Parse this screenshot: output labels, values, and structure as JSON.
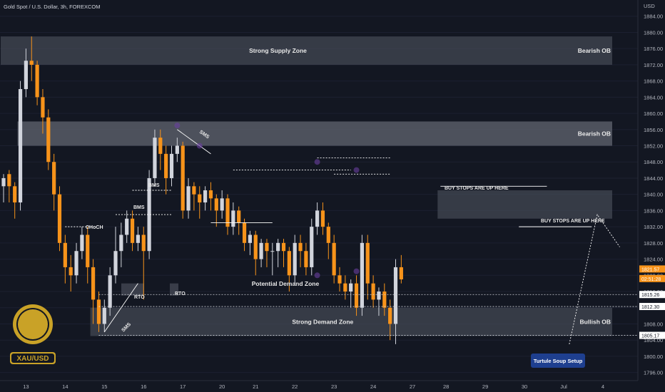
{
  "header": {
    "symbol_line": "Gold Spot / U.S. Dollar, 3h, FOREXCOM"
  },
  "logo": {
    "text": "XAU/USD"
  },
  "chart_data": {
    "type": "candlestick",
    "currency": "USD",
    "ylim": [
      1794,
      1888
    ],
    "y_ticks": [
      1796,
      1800,
      1804,
      1808,
      1812,
      1816,
      1820,
      1824,
      1828,
      1832,
      1836,
      1840,
      1844,
      1848,
      1852,
      1856,
      1860,
      1864,
      1868,
      1872,
      1876,
      1880,
      1884
    ],
    "x_ticks": [
      {
        "label": "13",
        "i": 4
      },
      {
        "label": "14",
        "i": 11
      },
      {
        "label": "15",
        "i": 18
      },
      {
        "label": "16",
        "i": 25
      },
      {
        "label": "17",
        "i": 32
      },
      {
        "label": "20",
        "i": 39
      },
      {
        "label": "21",
        "i": 45
      },
      {
        "label": "22",
        "i": 52
      },
      {
        "label": "23",
        "i": 59
      },
      {
        "label": "24",
        "i": 66
      },
      {
        "label": "27",
        "i": 73
      },
      {
        "label": "28",
        "i": 79
      },
      {
        "label": "29",
        "i": 86
      },
      {
        "label": "30",
        "i": 93
      },
      {
        "label": "Jul",
        "i": 100
      },
      {
        "label": "4",
        "i": 107
      }
    ],
    "candles": [
      [
        1842,
        1844,
        1838,
        1845
      ],
      [
        1845,
        1842,
        1838,
        1846
      ],
      [
        1842,
        1838,
        1834,
        1843
      ],
      [
        1838,
        1866,
        1836,
        1868
      ],
      [
        1866,
        1873,
        1864,
        1876
      ],
      [
        1873,
        1872,
        1868,
        1879
      ],
      [
        1872,
        1864,
        1862,
        1873
      ],
      [
        1864,
        1859,
        1855,
        1866
      ],
      [
        1859,
        1848,
        1846,
        1861
      ],
      [
        1848,
        1840,
        1836,
        1850
      ],
      [
        1840,
        1828,
        1826,
        1842
      ],
      [
        1828,
        1822,
        1818,
        1830
      ],
      [
        1822,
        1820,
        1816,
        1825
      ],
      [
        1820,
        1826,
        1818,
        1828
      ],
      [
        1826,
        1830,
        1824,
        1832
      ],
      [
        1830,
        1822,
        1818,
        1832
      ],
      [
        1822,
        1814,
        1808,
        1824
      ],
      [
        1814,
        1808,
        1806,
        1816
      ],
      [
        1808,
        1812,
        1806,
        1814
      ],
      [
        1812,
        1820,
        1810,
        1822
      ],
      [
        1820,
        1826,
        1818,
        1832
      ],
      [
        1826,
        1830,
        1822,
        1833
      ],
      [
        1830,
        1834,
        1828,
        1836
      ],
      [
        1834,
        1828,
        1826,
        1836
      ],
      [
        1828,
        1830,
        1826,
        1832
      ],
      [
        1830,
        1826,
        1814,
        1832
      ],
      [
        1826,
        1844,
        1824,
        1846
      ],
      [
        1844,
        1854,
        1842,
        1856
      ],
      [
        1854,
        1850,
        1846,
        1856
      ],
      [
        1850,
        1844,
        1840,
        1852
      ],
      [
        1844,
        1850,
        1842,
        1852
      ],
      [
        1850,
        1852,
        1848,
        1854
      ],
      [
        1852,
        1836,
        1834,
        1853
      ],
      [
        1836,
        1842,
        1834,
        1844
      ],
      [
        1842,
        1840,
        1836,
        1843
      ],
      [
        1840,
        1838,
        1834,
        1842
      ],
      [
        1838,
        1841,
        1836,
        1842
      ],
      [
        1841,
        1839,
        1836,
        1843
      ],
      [
        1839,
        1836,
        1832,
        1840
      ],
      [
        1836,
        1839,
        1834,
        1841
      ],
      [
        1839,
        1832,
        1830,
        1840
      ],
      [
        1832,
        1836,
        1830,
        1838
      ],
      [
        1836,
        1833,
        1830,
        1837
      ],
      [
        1833,
        1828,
        1826,
        1834
      ],
      [
        1828,
        1830,
        1825,
        1831
      ],
      [
        1830,
        1824,
        1820,
        1831
      ],
      [
        1824,
        1828,
        1822,
        1829
      ],
      [
        1828,
        1826,
        1822,
        1829
      ],
      [
        1826,
        1826,
        1820,
        1828
      ],
      [
        1826,
        1828,
        1822,
        1829
      ],
      [
        1828,
        1826,
        1822,
        1829
      ],
      [
        1826,
        1820,
        1816,
        1827
      ],
      [
        1820,
        1828,
        1818,
        1830
      ],
      [
        1828,
        1826,
        1822,
        1830
      ],
      [
        1826,
        1822,
        1820,
        1828
      ],
      [
        1822,
        1832,
        1820,
        1834
      ],
      [
        1832,
        1836,
        1830,
        1838
      ],
      [
        1836,
        1832,
        1830,
        1838
      ],
      [
        1832,
        1828,
        1824,
        1833
      ],
      [
        1828,
        1820,
        1818,
        1830
      ],
      [
        1820,
        1818,
        1816,
        1822
      ],
      [
        1818,
        1816,
        1814,
        1820
      ],
      [
        1816,
        1818,
        1812,
        1819
      ],
      [
        1818,
        1812,
        1810,
        1820
      ],
      [
        1812,
        1828,
        1810,
        1830
      ],
      [
        1828,
        1818,
        1814,
        1830
      ],
      [
        1818,
        1814,
        1812,
        1820
      ],
      [
        1814,
        1816,
        1810,
        1817
      ],
      [
        1816,
        1812,
        1810,
        1818
      ],
      [
        1812,
        1808,
        1804,
        1814
      ],
      [
        1808,
        1822,
        1803,
        1824
      ],
      [
        1822,
        1819,
        1818,
        1825
      ]
    ],
    "price_labels": [
      {
        "value": "1821.57",
        "y": 1821.57,
        "color": "#f7931a"
      },
      {
        "value": "02:51:28",
        "y": 1819.2,
        "color": "#f7931a"
      },
      {
        "value": "1815.26",
        "y": 1815.26,
        "color": "#ffffff"
      },
      {
        "value": "1812.30",
        "y": 1812.3,
        "color": "#ffffff"
      },
      {
        "value": "1805.17",
        "y": 1805.17,
        "color": "#ffffff"
      }
    ],
    "zones": [
      {
        "label": "Strong Supply Zone",
        "right_label": "Bearish OB",
        "y1": 1872,
        "y2": 1879,
        "i1": 0,
        "i2": 111
      },
      {
        "label": "",
        "right_label": "Bearish OB",
        "y1": 1852,
        "y2": 1858,
        "i1": 3,
        "i2": 111
      },
      {
        "label": "",
        "right_label": "",
        "y1": 1834,
        "y2": 1841,
        "i1": 78,
        "i2": 111
      },
      {
        "label": "Strong Demand Zone",
        "right_label": "Bullish OB",
        "y1": 1805,
        "y2": 1812,
        "i1": 16,
        "i2": 111
      }
    ],
    "annotations": [
      {
        "text": "CHoCH"
      },
      {
        "text": "BMS"
      },
      {
        "text": "BMS"
      },
      {
        "text": "SMS"
      },
      {
        "text": "SMS"
      },
      {
        "text": "RTO"
      },
      {
        "text": "RTO"
      },
      {
        "text": "Potential Demand Zone"
      },
      {
        "text": "BUY STOPS ARE UP HERE"
      },
      {
        "text": "BUY STOPS ARE UP HERE"
      },
      {
        "text": "Turtule Soup Setup"
      }
    ]
  }
}
